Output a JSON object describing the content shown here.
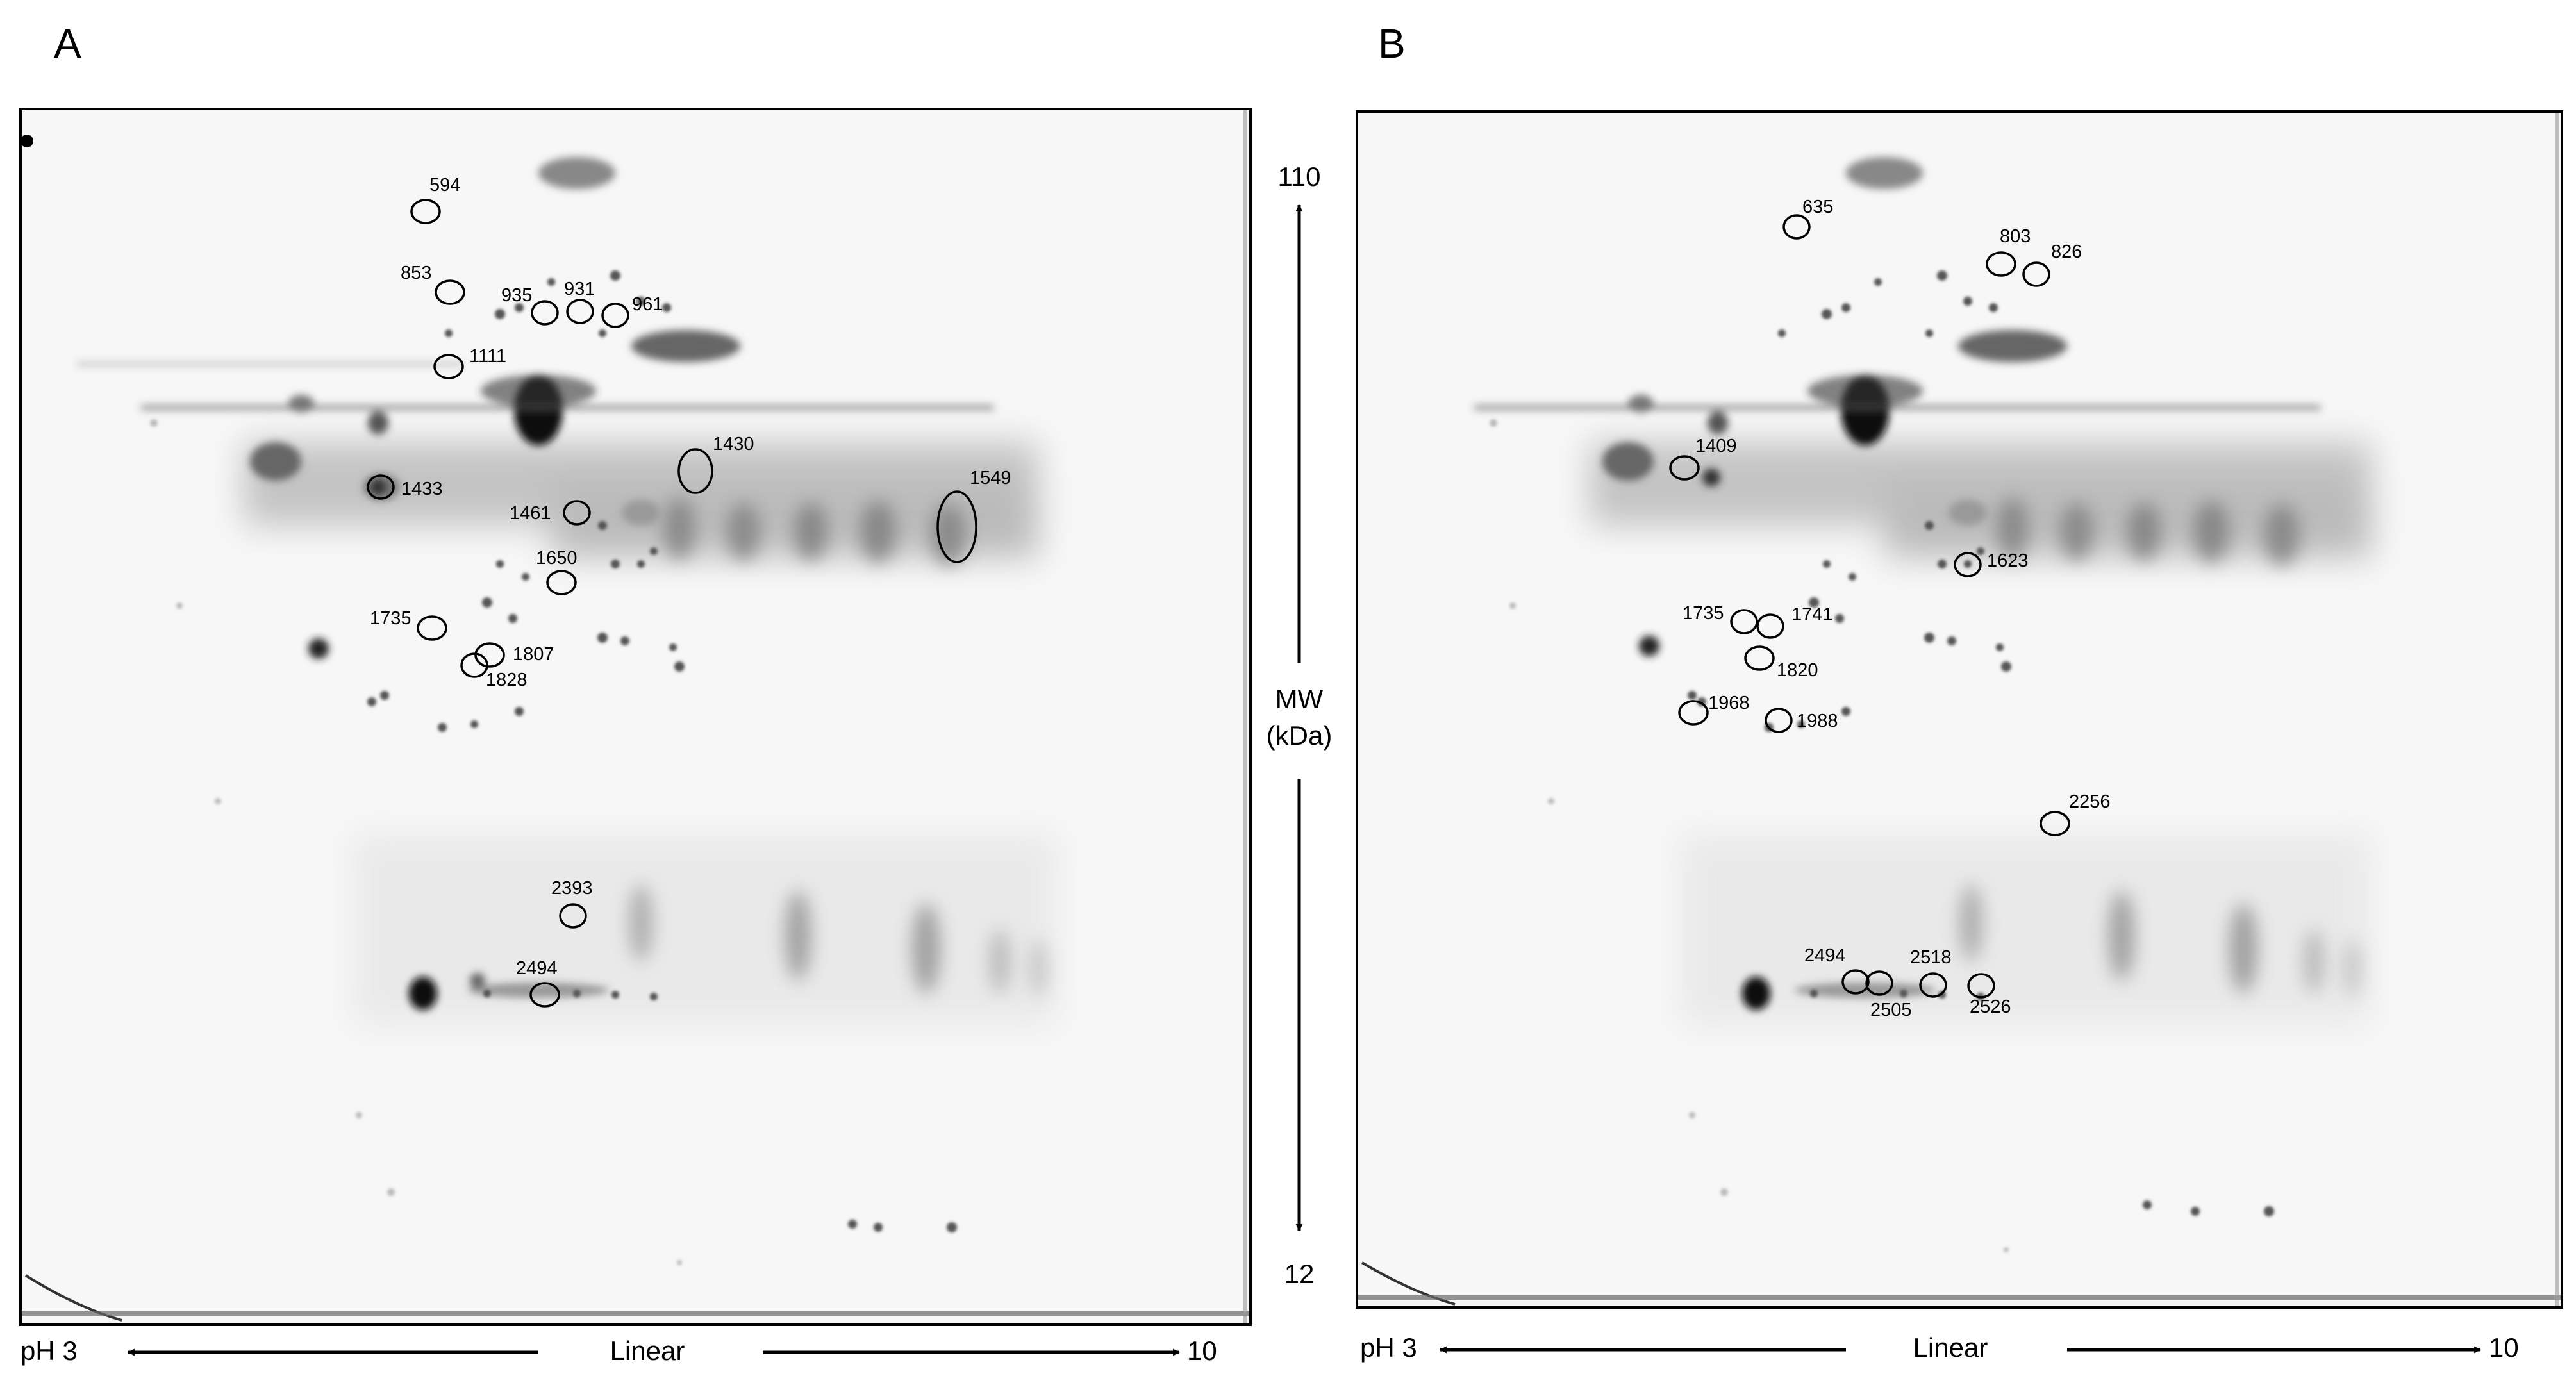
{
  "figure": {
    "panels": [
      {
        "id": "A",
        "letter": "A",
        "spots": [
          {
            "label": "594"
          },
          {
            "label": "853"
          },
          {
            "label": "935"
          },
          {
            "label": "931"
          },
          {
            "label": "961"
          },
          {
            "label": "1111"
          },
          {
            "label": "1430"
          },
          {
            "label": "1549"
          },
          {
            "label": "1433"
          },
          {
            "label": "1461"
          },
          {
            "label": "1650"
          },
          {
            "label": "1735"
          },
          {
            "label": "1807"
          },
          {
            "label": "1828"
          },
          {
            "label": "2393"
          },
          {
            "label": "2494"
          }
        ],
        "ph_axis": {
          "left": "pH 3",
          "center": "Linear",
          "right": "10"
        }
      },
      {
        "id": "B",
        "letter": "B",
        "spots": [
          {
            "label": "635"
          },
          {
            "label": "803"
          },
          {
            "label": "826"
          },
          {
            "label": "1409"
          },
          {
            "label": "1623"
          },
          {
            "label": "1735"
          },
          {
            "label": "1741"
          },
          {
            "label": "1820"
          },
          {
            "label": "1968"
          },
          {
            "label": "1988"
          },
          {
            "label": "2256"
          },
          {
            "label": "2494"
          },
          {
            "label": "2505"
          },
          {
            "label": "2518"
          },
          {
            "label": "2526"
          }
        ],
        "ph_axis": {
          "left": "pH 3",
          "center": "Linear",
          "right": "10"
        }
      }
    ],
    "mw_axis": {
      "top": "110",
      "label_line1": "MW",
      "label_line2": "(kDa)",
      "bottom": "12"
    }
  }
}
